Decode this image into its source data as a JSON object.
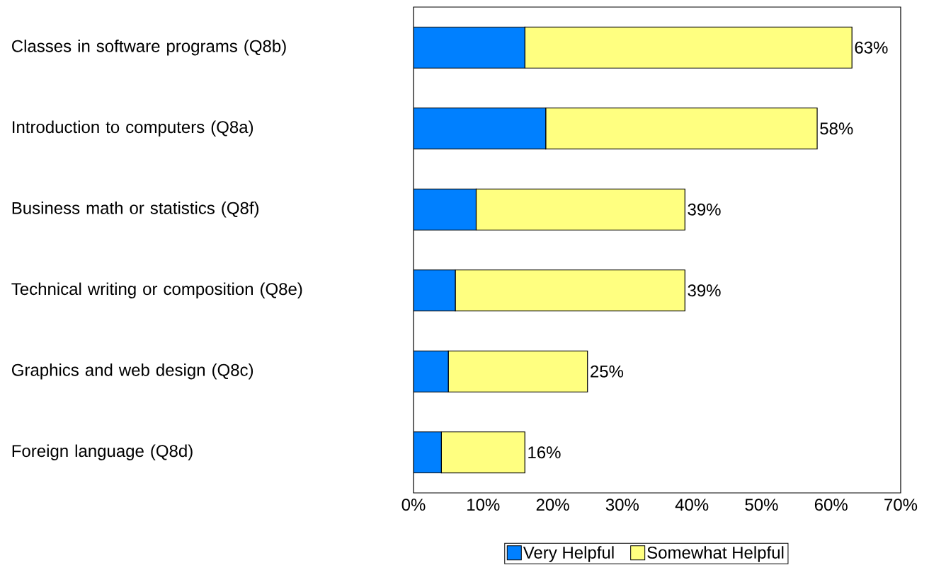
{
  "chart_data": {
    "type": "bar",
    "orientation": "horizontal",
    "stacked": true,
    "categories": [
      "Classes in software programs (Q8b)",
      "Introduction to computers (Q8a)",
      "Business math or statistics (Q8f)",
      "Technical writing or composition (Q8e)",
      "Graphics and web design (Q8c)",
      "Foreign language (Q8d)"
    ],
    "series": [
      {
        "name": "Very Helpful",
        "color": "#0080ff",
        "values": [
          16,
          19,
          9,
          6,
          5,
          4
        ]
      },
      {
        "name": "Somewhat Helpful",
        "color": "#ffff80",
        "values": [
          47,
          39,
          30,
          33,
          20,
          12
        ]
      }
    ],
    "totals": [
      "63%",
      "58%",
      "39%",
      "39%",
      "25%",
      "16%"
    ],
    "xlim": [
      0,
      70
    ],
    "xticks": [
      {
        "value": 0,
        "label": "0%"
      },
      {
        "value": 10,
        "label": "10%"
      },
      {
        "value": 20,
        "label": "20%"
      },
      {
        "value": 30,
        "label": "30%"
      },
      {
        "value": 40,
        "label": "40%"
      },
      {
        "value": 50,
        "label": "50%"
      },
      {
        "value": 60,
        "label": "60%"
      },
      {
        "value": 70,
        "label": "70%"
      }
    ],
    "grid": false,
    "legend": "bottom"
  }
}
